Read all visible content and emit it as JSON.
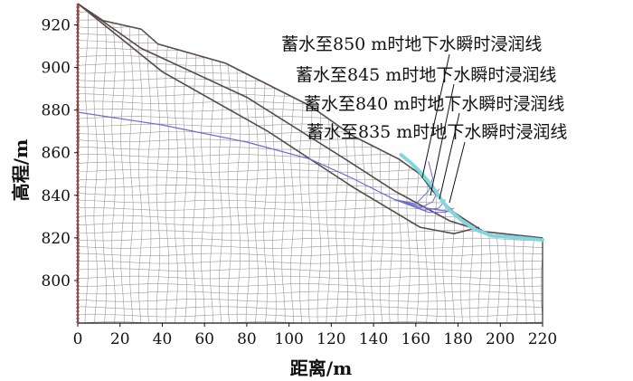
{
  "chart_data": {
    "type": "diagram",
    "xlabel": "距离/m",
    "ylabel": "高程/m",
    "xlim": [
      0,
      220
    ],
    "ylim": [
      780,
      930
    ],
    "xticks": [
      "0",
      "20",
      "40",
      "60",
      "80",
      "100",
      "120",
      "140",
      "160",
      "180",
      "200",
      "220"
    ],
    "yticks": [
      "800",
      "820",
      "840",
      "860",
      "880",
      "900",
      "920"
    ],
    "annotations": [
      "蓄水至850 m时地下水瞬时浸润线",
      "蓄水至845 m时地下水瞬时浸润线",
      "蓄水至840 m时地下水瞬时浸润线",
      "蓄水至835 m时地下水瞬时浸润线"
    ],
    "colors": {
      "mesh": "#9a9a9a",
      "slope_outline": "#5a4a4a",
      "groundwater": "#6d6bd0",
      "reservoir_water": "#7fd8e0",
      "boundary": "#c0392b"
    },
    "surface_profile": [
      [
        0,
        930
      ],
      [
        12,
        922
      ],
      [
        30,
        918
      ],
      [
        38,
        911
      ],
      [
        70,
        902
      ],
      [
        110,
        882
      ],
      [
        130,
        868
      ],
      [
        152,
        857
      ],
      [
        162,
        850
      ],
      [
        168,
        842
      ],
      [
        178,
        832
      ],
      [
        192,
        823
      ],
      [
        220,
        820
      ]
    ],
    "failure_surface_upper": [
      [
        0,
        930
      ],
      [
        30,
        909
      ],
      [
        80,
        886
      ],
      [
        125,
        858
      ],
      [
        150,
        842
      ],
      [
        176,
        828
      ],
      [
        192,
        823
      ]
    ],
    "failure_surface_lower": [
      [
        0,
        930
      ],
      [
        40,
        898
      ],
      [
        90,
        870
      ],
      [
        130,
        844
      ],
      [
        162,
        825
      ],
      [
        178,
        822
      ],
      [
        190,
        825
      ]
    ],
    "groundwater_line": [
      [
        0,
        879
      ],
      [
        40,
        873
      ],
      [
        80,
        865
      ],
      [
        110,
        857
      ],
      [
        130,
        848
      ],
      [
        150,
        838
      ],
      [
        165,
        834
      ],
      [
        178,
        832
      ]
    ],
    "reservoir_line": [
      [
        153,
        859
      ],
      [
        158,
        855
      ],
      [
        163,
        850
      ],
      [
        168,
        844
      ],
      [
        172,
        838
      ],
      [
        176,
        833
      ],
      [
        182,
        828
      ],
      [
        188,
        824
      ],
      [
        196,
        821
      ],
      [
        210,
        820
      ],
      [
        220,
        819
      ]
    ]
  }
}
